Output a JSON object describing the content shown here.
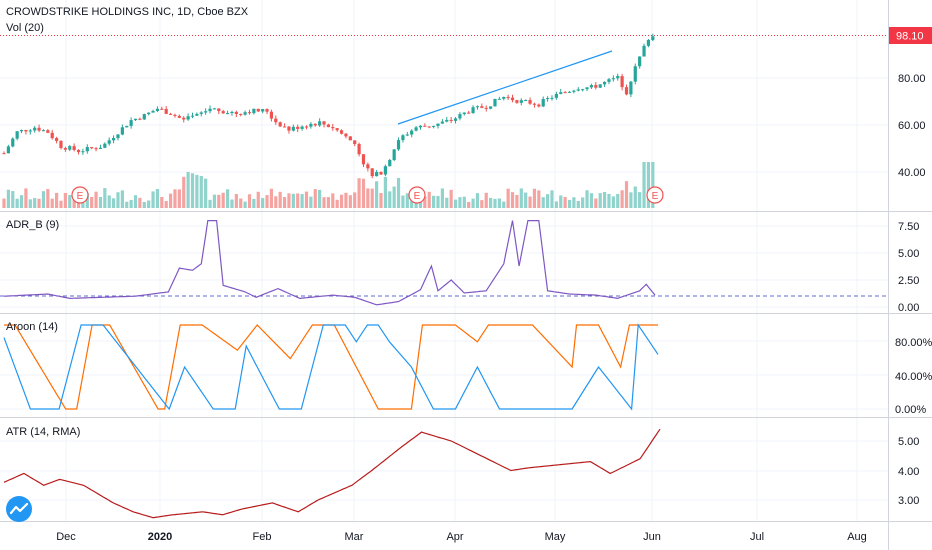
{
  "header": {
    "symbol_title": "CROWDSTRIKE HOLDINGS INC, 1D, Cboe BZX",
    "volume_label": "Vol (20)"
  },
  "price": {
    "last_label": "98.10",
    "last_value": 98.1,
    "axis_ticks": [
      "80.00",
      "60.00",
      "40.00"
    ],
    "axis_values": [
      80,
      60,
      40
    ],
    "earnings_marker": "E"
  },
  "panes": {
    "adr": {
      "title": "ADR_B (9)",
      "ticks": [
        "7.50",
        "5.00",
        "2.50",
        "0.00"
      ]
    },
    "aroon": {
      "title": "Aroon (14)",
      "ticks": [
        "80.00%",
        "40.00%",
        "0.00%"
      ]
    },
    "atr": {
      "title": "ATR (14, RMA)",
      "ticks": [
        "5.00",
        "4.00",
        "3.00"
      ]
    }
  },
  "time_axis": {
    "labels": [
      "Dec",
      "2020",
      "Feb",
      "Mar",
      "Apr",
      "May",
      "Jun",
      "Jul",
      "Aug"
    ]
  },
  "colors": {
    "up": "#26a69a",
    "down": "#ef5350",
    "trendline": "#2196f3",
    "adr_line": "#7e57c2",
    "aroon_up": "#ff6d00",
    "aroon_down": "#2196f3",
    "atr_line": "#b71c1c",
    "price_line": "#f23645"
  },
  "icons": {
    "logo": "tradingview-logo-icon"
  },
  "chart_data": {
    "type": "candlestick",
    "price_anchors": [
      [
        0,
        48
      ],
      [
        6,
        57
      ],
      [
        14,
        59
      ],
      [
        20,
        57
      ],
      [
        26,
        51
      ],
      [
        34,
        49
      ],
      [
        40,
        50
      ],
      [
        45,
        51
      ],
      [
        52,
        57
      ],
      [
        58,
        62
      ],
      [
        64,
        64
      ],
      [
        70,
        67
      ],
      [
        76,
        65
      ],
      [
        82,
        62
      ],
      [
        88,
        64
      ],
      [
        94,
        67
      ],
      [
        100,
        66
      ],
      [
        106,
        65
      ],
      [
        112,
        66
      ],
      [
        116,
        66
      ],
      [
        120,
        66
      ],
      [
        123,
        62
      ],
      [
        130,
        58
      ],
      [
        137,
        60
      ],
      [
        144,
        61
      ],
      [
        150,
        59
      ],
      [
        156,
        55
      ],
      [
        160,
        52
      ],
      [
        164,
        44
      ],
      [
        168,
        38
      ],
      [
        172,
        40
      ],
      [
        176,
        46
      ],
      [
        180,
        54
      ],
      [
        188,
        59
      ],
      [
        196,
        60
      ],
      [
        204,
        62
      ],
      [
        212,
        66
      ],
      [
        220,
        68
      ],
      [
        228,
        72
      ],
      [
        236,
        70
      ],
      [
        244,
        69
      ],
      [
        250,
        72
      ],
      [
        256,
        74
      ],
      [
        262,
        76
      ],
      [
        268,
        76
      ],
      [
        274,
        78
      ],
      [
        280,
        80
      ],
      [
        284,
        74
      ],
      [
        287,
        82
      ],
      [
        291,
        91
      ],
      [
        294,
        97
      ],
      [
        297,
        98.1
      ]
    ],
    "adr_anchors": [
      [
        0,
        1
      ],
      [
        20,
        1.2
      ],
      [
        30,
        0.8
      ],
      [
        60,
        1
      ],
      [
        75,
        1.4
      ],
      [
        80,
        3.6
      ],
      [
        86,
        3.4
      ],
      [
        90,
        4
      ],
      [
        93,
        8
      ],
      [
        97,
        8
      ],
      [
        100,
        2
      ],
      [
        110,
        1.4
      ],
      [
        115,
        0.9
      ],
      [
        125,
        1.7
      ],
      [
        135,
        0.8
      ],
      [
        150,
        1.1
      ],
      [
        160,
        0.9
      ],
      [
        170,
        0.2
      ],
      [
        180,
        0.5
      ],
      [
        190,
        1.6
      ],
      [
        195,
        3.8
      ],
      [
        198,
        1.5
      ],
      [
        204,
        2.5
      ],
      [
        210,
        1.3
      ],
      [
        220,
        1.5
      ],
      [
        228,
        4
      ],
      [
        232,
        8
      ],
      [
        235,
        3.8
      ],
      [
        239,
        8
      ],
      [
        244,
        8
      ],
      [
        248,
        1.5
      ],
      [
        258,
        1.2
      ],
      [
        270,
        1.1
      ],
      [
        280,
        0.8
      ],
      [
        290,
        1.5
      ],
      [
        293,
        2.1
      ],
      [
        297,
        1.1
      ]
    ],
    "aroon_up_anchors": [
      [
        0,
        100
      ],
      [
        5,
        100
      ],
      [
        28,
        0
      ],
      [
        33,
        0
      ],
      [
        40,
        100
      ],
      [
        48,
        100
      ],
      [
        70,
        0
      ],
      [
        73,
        0
      ],
      [
        80,
        100
      ],
      [
        90,
        100
      ],
      [
        106,
        70
      ],
      [
        115,
        100
      ],
      [
        130,
        60
      ],
      [
        140,
        100
      ],
      [
        150,
        100
      ],
      [
        170,
        0
      ],
      [
        185,
        0
      ],
      [
        190,
        100
      ],
      [
        205,
        100
      ],
      [
        215,
        80
      ],
      [
        220,
        100
      ],
      [
        240,
        100
      ],
      [
        258,
        50
      ],
      [
        260,
        100
      ],
      [
        270,
        100
      ],
      [
        280,
        50
      ],
      [
        284,
        100
      ],
      [
        297,
        100
      ]
    ],
    "aroon_down_anchors": [
      [
        0,
        85
      ],
      [
        12,
        0
      ],
      [
        25,
        0
      ],
      [
        35,
        100
      ],
      [
        45,
        100
      ],
      [
        75,
        0
      ],
      [
        82,
        50
      ],
      [
        95,
        0
      ],
      [
        105,
        0
      ],
      [
        110,
        75
      ],
      [
        125,
        0
      ],
      [
        135,
        0
      ],
      [
        145,
        100
      ],
      [
        155,
        100
      ],
      [
        160,
        80
      ],
      [
        165,
        100
      ],
      [
        170,
        100
      ],
      [
        175,
        80
      ],
      [
        185,
        50
      ],
      [
        195,
        0
      ],
      [
        205,
        0
      ],
      [
        215,
        50
      ],
      [
        225,
        0
      ],
      [
        240,
        0
      ],
      [
        250,
        0
      ],
      [
        258,
        0
      ],
      [
        270,
        50
      ],
      [
        285,
        0
      ],
      [
        288,
        100
      ],
      [
        297,
        65
      ]
    ],
    "atr_anchors": [
      [
        0,
        3.6
      ],
      [
        10,
        3.9
      ],
      [
        20,
        3.5
      ],
      [
        28,
        3.7
      ],
      [
        40,
        3.5
      ],
      [
        55,
        2.9
      ],
      [
        65,
        2.6
      ],
      [
        75,
        2.4
      ],
      [
        85,
        2.5
      ],
      [
        100,
        2.6
      ],
      [
        110,
        2.5
      ],
      [
        120,
        2.7
      ],
      [
        135,
        2.9
      ],
      [
        148,
        2.6
      ],
      [
        158,
        3
      ],
      [
        175,
        3.5
      ],
      [
        185,
        4
      ],
      [
        200,
        4.8
      ],
      [
        210,
        5.3
      ],
      [
        225,
        5.0
      ],
      [
        240,
        4.5
      ],
      [
        255,
        4.0
      ],
      [
        265,
        4.1
      ],
      [
        280,
        4.2
      ],
      [
        295,
        4.3
      ],
      [
        305,
        3.9
      ],
      [
        320,
        4.4
      ],
      [
        330,
        5.4
      ]
    ]
  }
}
